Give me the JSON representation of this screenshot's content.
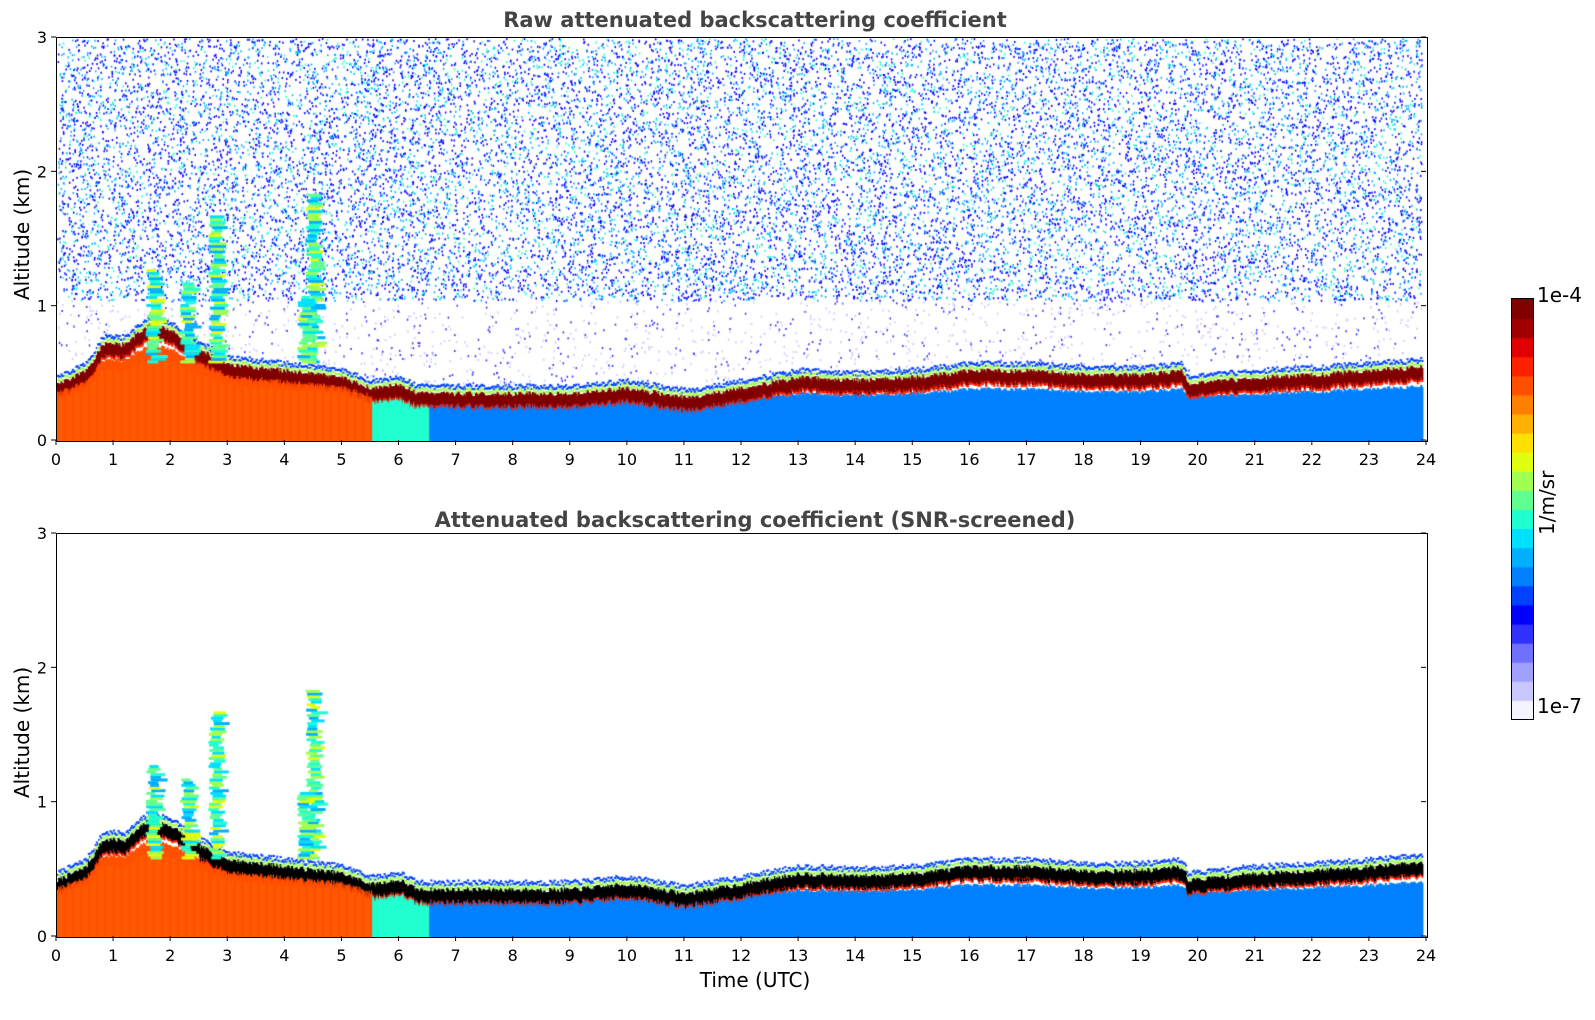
{
  "chart_data": [
    {
      "type": "heatmap",
      "title": "Raw attenuated backscattering coefficient",
      "xlabel": "",
      "ylabel": "Altitude (km)",
      "xlim": [
        0,
        24
      ],
      "ylim": [
        0,
        3
      ],
      "xticks": [
        0,
        1,
        2,
        3,
        4,
        5,
        6,
        7,
        8,
        9,
        10,
        11,
        12,
        13,
        14,
        15,
        16,
        17,
        18,
        19,
        20,
        21,
        22,
        23,
        24
      ],
      "yticks": [
        0,
        1,
        2,
        3
      ],
      "layer_top_km": [
        [
          0,
          0.45
        ],
        [
          0.5,
          0.55
        ],
        [
          0.8,
          0.75
        ],
        [
          1.2,
          0.75
        ],
        [
          1.6,
          0.9
        ],
        [
          2.0,
          0.85
        ],
        [
          2.5,
          0.7
        ],
        [
          3.0,
          0.6
        ],
        [
          4.0,
          0.55
        ],
        [
          5.0,
          0.5
        ],
        [
          5.5,
          0.42
        ],
        [
          6.0,
          0.45
        ],
        [
          6.3,
          0.38
        ],
        [
          8.0,
          0.38
        ],
        [
          9.0,
          0.38
        ],
        [
          10.0,
          0.42
        ],
        [
          11.0,
          0.35
        ],
        [
          12.0,
          0.42
        ],
        [
          13.0,
          0.5
        ],
        [
          14.0,
          0.48
        ],
        [
          15.0,
          0.5
        ],
        [
          16.0,
          0.55
        ],
        [
          17.0,
          0.55
        ],
        [
          18.0,
          0.52
        ],
        [
          19.0,
          0.52
        ],
        [
          19.7,
          0.55
        ],
        [
          19.8,
          0.45
        ],
        [
          21.0,
          0.5
        ],
        [
          22.0,
          0.52
        ],
        [
          23.0,
          0.55
        ],
        [
          23.9,
          0.58
        ]
      ],
      "noise": true,
      "screened": false
    },
    {
      "type": "heatmap",
      "title": "Attenuated backscattering coefficient (SNR-screened)",
      "xlabel": "Time (UTC)",
      "ylabel": "Altitude (km)",
      "xlim": [
        0,
        24
      ],
      "ylim": [
        0,
        3
      ],
      "xticks": [
        0,
        1,
        2,
        3,
        4,
        5,
        6,
        7,
        8,
        9,
        10,
        11,
        12,
        13,
        14,
        15,
        16,
        17,
        18,
        19,
        20,
        21,
        22,
        23,
        24
      ],
      "yticks": [
        0,
        1,
        2,
        3
      ],
      "noise": false,
      "screened": true
    }
  ],
  "colorbar": {
    "max_label": "1e-4",
    "min_label": "1e-7",
    "unit": "1/m/sr",
    "colors": [
      "#f4f4ff",
      "#c8c8ff",
      "#a0a0ff",
      "#7070ff",
      "#3030ff",
      "#0000ff",
      "#0040ff",
      "#0080ff",
      "#00b0ff",
      "#00e0ff",
      "#20ffd0",
      "#60ff90",
      "#a0ff50",
      "#e0ff10",
      "#ffe000",
      "#ffb000",
      "#ff8000",
      "#ff5000",
      "#ff2000",
      "#e00000",
      "#a00000",
      "#800000"
    ]
  }
}
